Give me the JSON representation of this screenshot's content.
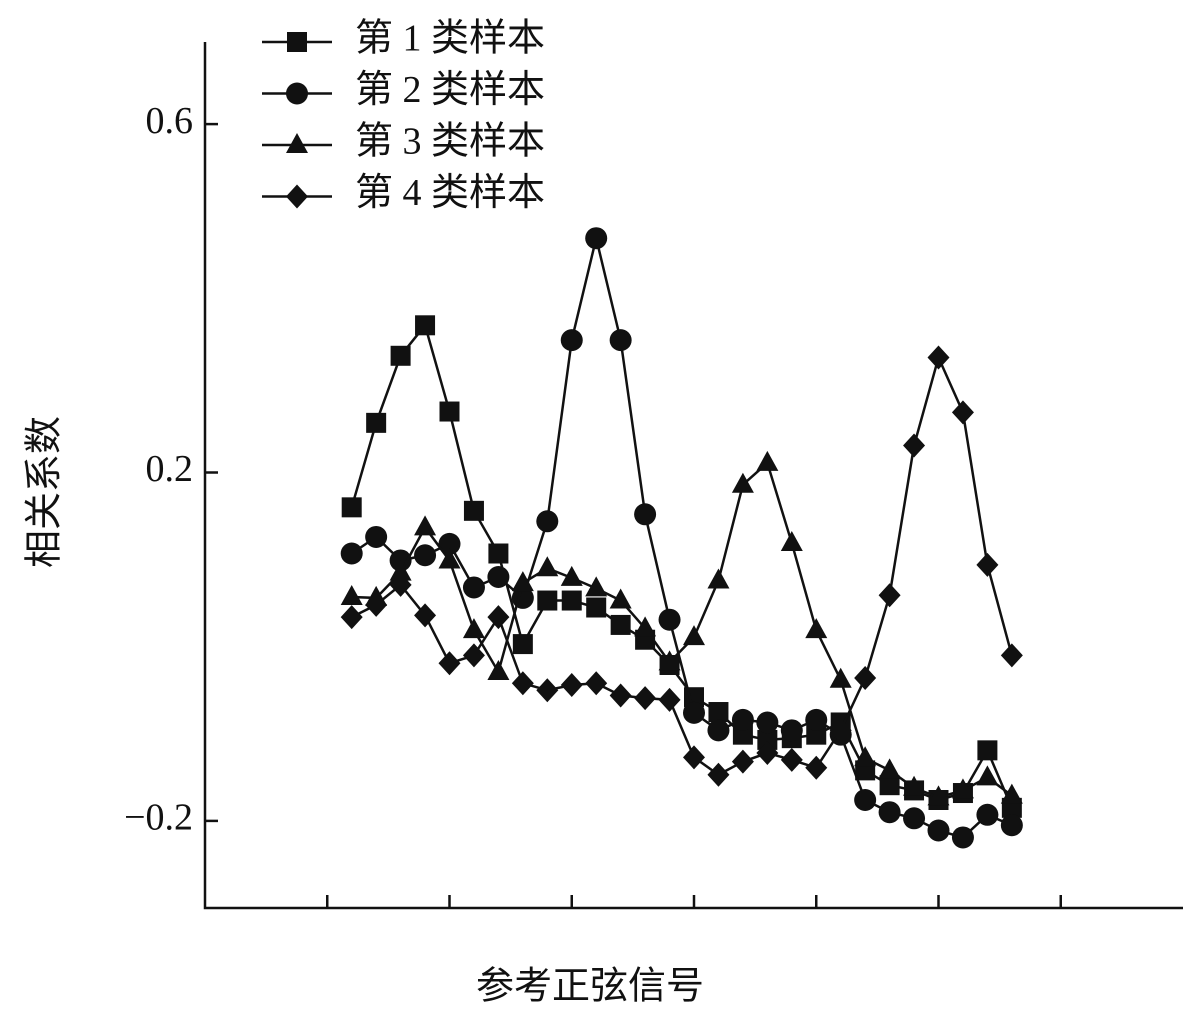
{
  "chart_data": {
    "type": "line",
    "x_label": "参考正弦信号",
    "y_label": "相关系数",
    "x": [
      1,
      2,
      3,
      4,
      5,
      6,
      7,
      8,
      9,
      10,
      11,
      12,
      13,
      14,
      15,
      16,
      17,
      18,
      19,
      20,
      21,
      22,
      23,
      24,
      25,
      26,
      27,
      28
    ],
    "xlim": [
      -5,
      35
    ],
    "xticks": [
      0,
      5,
      10,
      15,
      20,
      25,
      30
    ],
    "ylim": [
      -0.3,
      0.7
    ],
    "yticks": [
      {
        "value": -0.2,
        "label": "−0.2"
      },
      0.2,
      0.6
    ],
    "legend": "top-left",
    "series": [
      {
        "name": "第 1 类样本",
        "color": "#111111",
        "marker": "square",
        "values": [
          0.16,
          0.257,
          0.334,
          0.369,
          0.27,
          0.156,
          0.107,
          0.003,
          0.053,
          0.053,
          0.045,
          0.025,
          0.008,
          -0.021,
          -0.058,
          -0.075,
          -0.101,
          -0.107,
          -0.105,
          -0.101,
          -0.087,
          -0.142,
          -0.159,
          -0.165,
          -0.176,
          -0.168,
          -0.119,
          -0.185
        ]
      },
      {
        "name": "第 2 类样本",
        "color": "#111111",
        "marker": "circle",
        "values": [
          0.107,
          0.126,
          0.099,
          0.105,
          0.118,
          0.068,
          0.08,
          0.056,
          0.144,
          0.352,
          0.469,
          0.352,
          0.152,
          0.031,
          -0.076,
          -0.096,
          -0.084,
          -0.087,
          -0.096,
          -0.084,
          -0.101,
          -0.176,
          -0.19,
          -0.197,
          -0.211,
          -0.219,
          -0.193,
          -0.205
        ]
      },
      {
        "name": "第 3 类样本",
        "color": "#111111",
        "marker": "triangle",
        "values": [
          0.057,
          0.056,
          0.085,
          0.137,
          0.099,
          0.019,
          -0.029,
          0.073,
          0.09,
          0.079,
          0.067,
          0.053,
          0.021,
          -0.018,
          0.011,
          0.076,
          0.186,
          0.211,
          0.119,
          0.019,
          -0.038,
          -0.128,
          -0.142,
          -0.162,
          -0.173,
          -0.165,
          -0.15,
          -0.171
        ]
      },
      {
        "name": "第 4 类样本",
        "color": "#111111",
        "marker": "diamond",
        "values": [
          0.034,
          0.048,
          0.071,
          0.036,
          -0.019,
          -0.01,
          0.034,
          -0.042,
          -0.05,
          -0.044,
          -0.042,
          -0.056,
          -0.059,
          -0.061,
          -0.127,
          -0.147,
          -0.132,
          -0.122,
          -0.13,
          -0.139,
          -0.096,
          -0.036,
          0.059,
          0.231,
          0.332,
          0.269,
          0.094,
          -0.01
        ]
      }
    ]
  }
}
